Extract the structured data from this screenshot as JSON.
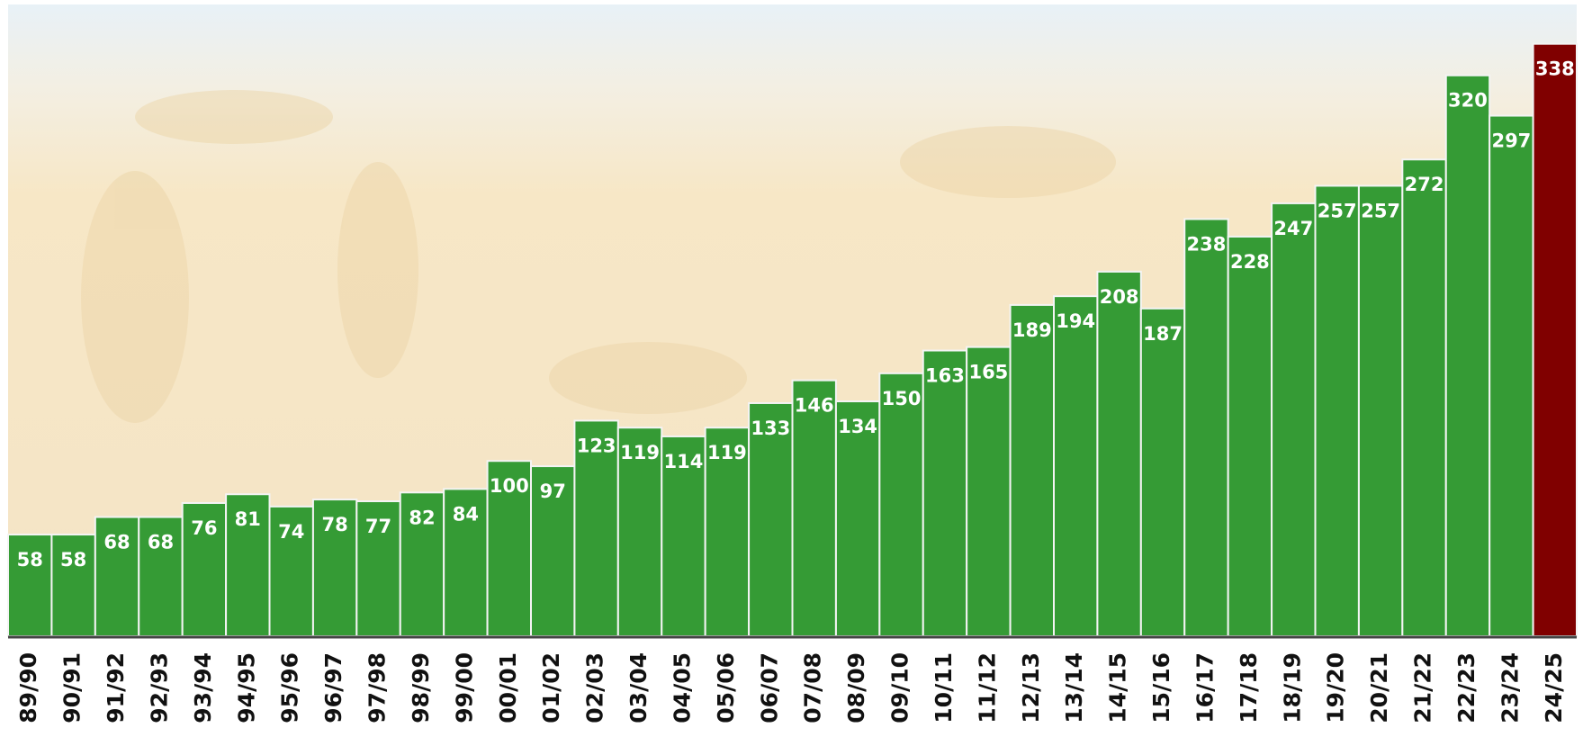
{
  "chart_data": {
    "type": "bar",
    "categories": [
      "89/90",
      "90/91",
      "91/92",
      "92/93",
      "93/94",
      "94/95",
      "95/96",
      "96/97",
      "97/98",
      "98/99",
      "99/00",
      "00/01",
      "01/02",
      "02/03",
      "03/04",
      "04/05",
      "05/06",
      "06/07",
      "07/08",
      "08/09",
      "09/10",
      "10/11",
      "11/12",
      "12/13",
      "13/14",
      "14/15",
      "15/16",
      "16/17",
      "17/18",
      "18/19",
      "19/20",
      "20/21",
      "21/22",
      "22/23",
      "23/24",
      "24/25"
    ],
    "values": [
      58,
      58,
      68,
      68,
      76,
      81,
      74,
      78,
      77,
      82,
      84,
      100,
      97,
      123,
      119,
      114,
      119,
      133,
      146,
      134,
      150,
      163,
      165,
      189,
      194,
      208,
      187,
      238,
      228,
      247,
      257,
      257,
      272,
      320,
      297,
      338
    ],
    "colors": [
      "#359b35",
      "#359b35",
      "#359b35",
      "#359b35",
      "#359b35",
      "#359b35",
      "#359b35",
      "#359b35",
      "#359b35",
      "#359b35",
      "#359b35",
      "#359b35",
      "#359b35",
      "#359b35",
      "#359b35",
      "#359b35",
      "#359b35",
      "#359b35",
      "#359b35",
      "#359b35",
      "#359b35",
      "#359b35",
      "#359b35",
      "#359b35",
      "#359b35",
      "#359b35",
      "#359b35",
      "#359b35",
      "#359b35",
      "#359b35",
      "#359b35",
      "#359b35",
      "#359b35",
      "#359b35",
      "#359b35",
      "#800000"
    ],
    "ylim": [
      0,
      363
    ]
  }
}
